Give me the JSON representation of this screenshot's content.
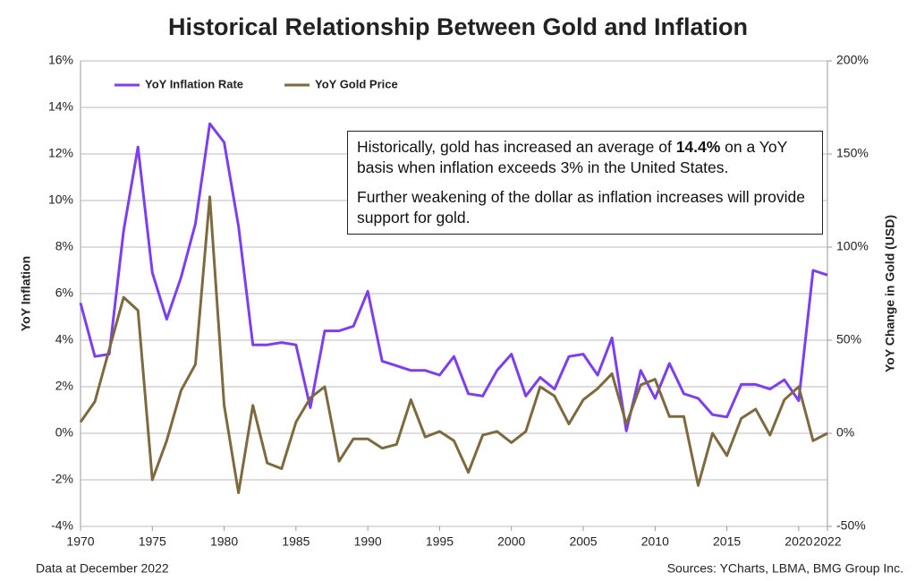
{
  "chart_data": {
    "type": "line",
    "title": "Historical Relationship Between Gold and Inflation",
    "y_label": "YoY Inflation",
    "y2_label": "YoY Change in Gold (USD)",
    "note": "Data at December 2022",
    "source": "Sources: YCharts, LBMA, BMG Group Inc.",
    "annotation": {
      "paragraph1": [
        "Historically, gold has increased an average of ",
        "14.4%",
        " on a YoY basis when inflation exceeds 3% in the United States."
      ],
      "paragraph2": "Further weakening of the dollar as inflation increases will provide support for gold."
    },
    "x": [
      1970,
      1971,
      1972,
      1973,
      1974,
      1975,
      1976,
      1977,
      1978,
      1979,
      1980,
      1981,
      1982,
      1983,
      1984,
      1985,
      1986,
      1987,
      1988,
      1989,
      1990,
      1991,
      1992,
      1993,
      1994,
      1995,
      1996,
      1997,
      1998,
      1999,
      2000,
      2001,
      2002,
      2003,
      2004,
      2005,
      2006,
      2007,
      2008,
      2009,
      2010,
      2011,
      2012,
      2013,
      2014,
      2015,
      2016,
      2017,
      2018,
      2019,
      2020,
      2021,
      2022
    ],
    "xlim": [
      1970,
      2022
    ],
    "xticks": [
      1970,
      1975,
      1980,
      1985,
      1990,
      1995,
      2000,
      2005,
      2010,
      2015,
      2020,
      2022
    ],
    "ylim": [
      -4,
      16
    ],
    "yticks": [
      {
        "value": -4,
        "label": "-4%"
      },
      {
        "value": -2,
        "label": "-2%"
      },
      {
        "value": 0,
        "label": "0%"
      },
      {
        "value": 2,
        "label": "2%"
      },
      {
        "value": 4,
        "label": "4%"
      },
      {
        "value": 6,
        "label": "6%"
      },
      {
        "value": 8,
        "label": "8%"
      },
      {
        "value": 10,
        "label": "10%"
      },
      {
        "value": 12,
        "label": "12%"
      },
      {
        "value": 14,
        "label": "14%"
      },
      {
        "value": 16,
        "label": "16%"
      }
    ],
    "y2lim": [
      -50,
      200
    ],
    "y2ticks": [
      {
        "value": -50,
        "label": "-50%"
      },
      {
        "value": 0,
        "label": "0%"
      },
      {
        "value": 50,
        "label": "50%"
      },
      {
        "value": 100,
        "label": "100%"
      },
      {
        "value": 150,
        "label": "150%"
      },
      {
        "value": 200,
        "label": "200%"
      }
    ],
    "grid": true,
    "legend": "top-left",
    "series": [
      {
        "name": "YoY Inflation Rate",
        "color": "#7b3ff0",
        "values": [
          5.6,
          3.3,
          3.4,
          8.7,
          12.3,
          6.9,
          4.9,
          6.7,
          9.0,
          13.3,
          12.5,
          8.9,
          3.8,
          3.8,
          3.9,
          3.8,
          1.1,
          4.4,
          4.4,
          4.6,
          6.1,
          3.1,
          2.9,
          2.7,
          2.7,
          2.5,
          3.3,
          1.7,
          1.6,
          2.7,
          3.4,
          1.6,
          2.4,
          1.9,
          3.3,
          3.4,
          2.5,
          4.1,
          0.1,
          2.7,
          1.5,
          3.0,
          1.7,
          1.5,
          0.8,
          0.7,
          2.1,
          2.1,
          1.9,
          2.3,
          1.4,
          7.0,
          6.8
        ]
      },
      {
        "name": "YoY Gold Price",
        "color": "#7d6a3e",
        "axis": "y2",
        "values": [
          6,
          17,
          45,
          73,
          66,
          -25,
          -4,
          23,
          37,
          127,
          15,
          -32,
          15,
          -16,
          -19,
          6,
          19,
          25,
          -15,
          -3,
          -3,
          -8,
          -6,
          18,
          -2,
          1,
          -4,
          -21,
          -1,
          1,
          -5,
          1,
          25,
          20,
          5,
          18,
          24,
          32,
          5,
          26,
          29,
          9,
          9,
          -28,
          0,
          -12,
          8,
          13,
          -1,
          18,
          25,
          -4,
          0
        ]
      }
    ]
  }
}
